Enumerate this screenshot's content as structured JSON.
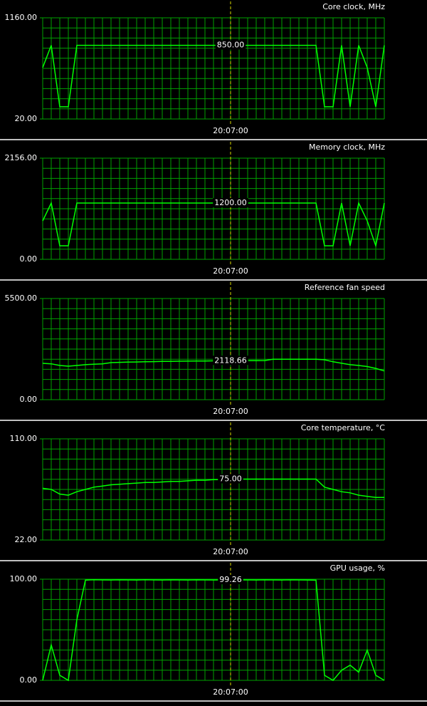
{
  "chart_data": [
    {
      "type": "line",
      "title": "Core clock, MHz",
      "color": "#00ff00",
      "grid_color": "#00a000",
      "marker_color": "#d8d800",
      "ylim": [
        20,
        1160
      ],
      "yticks": [
        {
          "value": 20,
          "label": "20.00"
        },
        {
          "value": 1160,
          "label": "1160.00"
        }
      ],
      "cursor_label": "850.00",
      "categories": [
        null,
        null,
        null,
        null,
        null,
        null,
        null,
        null,
        null,
        null,
        null,
        null,
        null,
        null,
        null,
        null,
        null,
        null,
        null,
        null,
        null,
        null,
        "20:07:00",
        null,
        null,
        null,
        null,
        null,
        null,
        null,
        null,
        null,
        null,
        null,
        null,
        null,
        null,
        null,
        null,
        null,
        null
      ],
      "values": [
        600,
        850,
        157,
        157,
        850,
        850,
        850,
        850,
        850,
        850,
        850,
        850,
        850,
        850,
        850,
        850,
        850,
        850,
        850,
        850,
        850,
        850,
        850,
        850,
        850,
        850,
        850,
        850,
        850,
        850,
        850,
        850,
        850,
        157,
        157,
        850,
        157,
        850,
        600,
        157,
        850
      ]
    },
    {
      "type": "line",
      "title": "Memory clock, MHz",
      "color": "#00ff00",
      "grid_color": "#00a000",
      "marker_color": "#d8d800",
      "ylim": [
        0,
        2156
      ],
      "yticks": [
        {
          "value": 0,
          "label": "0.00"
        },
        {
          "value": 2156,
          "label": "2156.00"
        }
      ],
      "cursor_label": "1200.00",
      "categories": [
        null,
        null,
        null,
        null,
        null,
        null,
        null,
        null,
        null,
        null,
        null,
        null,
        null,
        null,
        null,
        null,
        null,
        null,
        null,
        null,
        null,
        null,
        "20:07:00",
        null,
        null,
        null,
        null,
        null,
        null,
        null,
        null,
        null,
        null,
        null,
        null,
        null,
        null,
        null,
        null,
        null,
        null
      ],
      "values": [
        820,
        1200,
        288,
        288,
        1200,
        1200,
        1200,
        1200,
        1200,
        1200,
        1200,
        1200,
        1200,
        1200,
        1200,
        1200,
        1200,
        1200,
        1200,
        1200,
        1200,
        1200,
        1200,
        1200,
        1200,
        1200,
        1200,
        1200,
        1200,
        1200,
        1200,
        1200,
        1200,
        288,
        288,
        1200,
        288,
        1200,
        820,
        288,
        1200
      ]
    },
    {
      "type": "line",
      "title": "Reference fan speed",
      "color": "#00ff00",
      "grid_color": "#00a000",
      "marker_color": "#d8d800",
      "ylim": [
        0,
        5500
      ],
      "yticks": [
        {
          "value": 0,
          "label": "0.00"
        },
        {
          "value": 5500,
          "label": "5500.00"
        }
      ],
      "cursor_label": "2118.66",
      "categories": [
        null,
        null,
        null,
        null,
        null,
        null,
        null,
        null,
        null,
        null,
        null,
        null,
        null,
        null,
        null,
        null,
        null,
        null,
        null,
        null,
        null,
        null,
        "20:07:00",
        null,
        null,
        null,
        null,
        null,
        null,
        null,
        null,
        null,
        null,
        null,
        null,
        null,
        null,
        null,
        null,
        null,
        null
      ],
      "values": [
        1975,
        1950,
        1860,
        1820,
        1860,
        1900,
        1930,
        1950,
        2015,
        2030,
        2040,
        2050,
        2060,
        2070,
        2080,
        2085,
        2090,
        2095,
        2100,
        2105,
        2110,
        2115,
        2118.66,
        2120,
        2120,
        2120,
        2125,
        2200,
        2200,
        2200,
        2200,
        2200,
        2200,
        2170,
        2060,
        1980,
        1900,
        1860,
        1800,
        1700,
        1560
      ]
    },
    {
      "type": "line",
      "title": "Core temperature, °C",
      "color": "#00ff00",
      "grid_color": "#00a000",
      "marker_color": "#d8d800",
      "ylim": [
        22,
        110
      ],
      "yticks": [
        {
          "value": 22,
          "label": "22.00"
        },
        {
          "value": 110,
          "label": "110.00"
        }
      ],
      "cursor_label": "75.00",
      "categories": [
        null,
        null,
        null,
        null,
        null,
        null,
        null,
        null,
        null,
        null,
        null,
        null,
        null,
        null,
        null,
        null,
        null,
        null,
        null,
        null,
        null,
        null,
        "20:07:00",
        null,
        null,
        null,
        null,
        null,
        null,
        null,
        null,
        null,
        null,
        null,
        null,
        null,
        null,
        null,
        null,
        null,
        null
      ],
      "values": [
        67,
        66,
        62,
        61,
        64,
        66,
        68,
        69,
        70,
        70.5,
        71,
        71.5,
        72,
        72,
        72.5,
        73,
        73,
        73.5,
        74,
        74,
        74.5,
        74.5,
        75,
        75,
        75,
        75,
        75,
        75,
        75,
        75,
        75,
        75,
        75,
        68,
        66,
        64,
        63,
        61,
        60,
        59,
        59
      ]
    },
    {
      "type": "line",
      "title": "GPU usage, %",
      "color": "#00ff00",
      "grid_color": "#00a000",
      "marker_color": "#d8d800",
      "ylim": [
        0,
        100
      ],
      "yticks": [
        {
          "value": 0,
          "label": "0.00"
        },
        {
          "value": 100,
          "label": "100.00"
        }
      ],
      "cursor_label": "99.26",
      "categories": [
        null,
        null,
        null,
        null,
        null,
        null,
        null,
        null,
        null,
        null,
        null,
        null,
        null,
        null,
        null,
        null,
        null,
        null,
        null,
        null,
        null,
        null,
        "20:07:00",
        null,
        null,
        null,
        null,
        null,
        null,
        null,
        null,
        null,
        null,
        null,
        null,
        null,
        null,
        null,
        null,
        null,
        null
      ],
      "values": [
        0,
        35,
        5,
        0,
        60,
        99,
        99.5,
        99.3,
        99.2,
        99.4,
        99.3,
        99.2,
        99.5,
        99.3,
        99.2,
        99.4,
        99.3,
        99.2,
        99.4,
        99.3,
        99.2,
        99.3,
        99.26,
        99.4,
        99.3,
        99.2,
        99.4,
        99.3,
        99.2,
        99.4,
        99.3,
        99.2,
        99,
        5,
        0,
        10,
        15,
        8,
        30,
        5,
        0
      ]
    }
  ]
}
